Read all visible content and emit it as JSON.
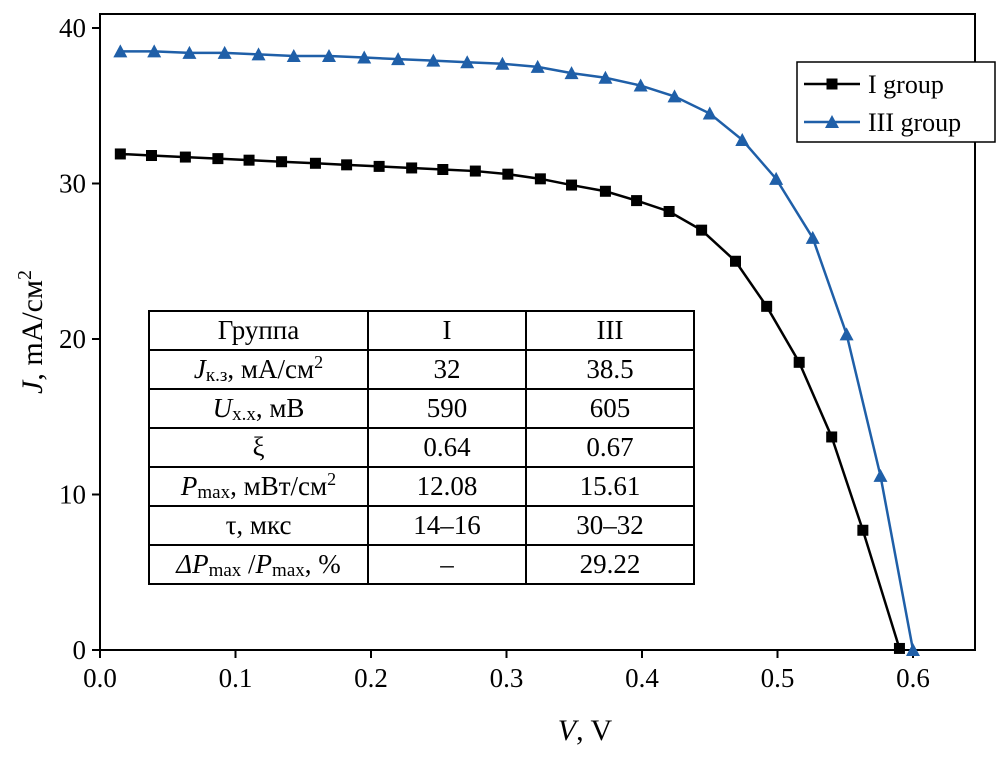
{
  "chart_data": {
    "type": "line",
    "xlabel": {
      "sym": "V",
      "rest": ", V"
    },
    "ylabel": {
      "sym": "J",
      "rest": ", mA/см",
      "sup": "2"
    },
    "xlim": [
      0,
      0.65
    ],
    "ylim": [
      0,
      40
    ],
    "xticks": [
      "0.0",
      "0.1",
      "0.2",
      "0.3",
      "0.4",
      "0.5",
      "0.6"
    ],
    "yticks": [
      "0",
      "10",
      "20",
      "30",
      "40"
    ],
    "legend_position": "top-right",
    "series": [
      {
        "name": "I group",
        "color": "#000000",
        "marker": "square",
        "x": [
          0.015,
          0.038,
          0.063,
          0.087,
          0.11,
          0.134,
          0.159,
          0.182,
          0.206,
          0.23,
          0.253,
          0.277,
          0.301,
          0.325,
          0.348,
          0.373,
          0.396,
          0.42,
          0.444,
          0.469,
          0.492,
          0.516,
          0.54,
          0.563,
          0.59
        ],
        "y": [
          31.9,
          31.8,
          31.7,
          31.6,
          31.5,
          31.4,
          31.3,
          31.2,
          31.1,
          31.0,
          30.9,
          30.8,
          30.6,
          30.3,
          29.9,
          29.5,
          28.9,
          28.2,
          27.0,
          25.0,
          22.1,
          18.5,
          13.7,
          7.7,
          0.1
        ]
      },
      {
        "name": "III group",
        "color": "#1f5fa8",
        "marker": "triangle",
        "x": [
          0.015,
          0.04,
          0.066,
          0.092,
          0.117,
          0.143,
          0.169,
          0.195,
          0.22,
          0.246,
          0.271,
          0.297,
          0.323,
          0.348,
          0.373,
          0.399,
          0.424,
          0.45,
          0.474,
          0.499,
          0.526,
          0.551,
          0.576,
          0.6
        ],
        "y": [
          38.5,
          38.5,
          38.4,
          38.4,
          38.3,
          38.2,
          38.2,
          38.1,
          38.0,
          37.9,
          37.8,
          37.7,
          37.5,
          37.1,
          36.8,
          36.3,
          35.6,
          34.5,
          32.8,
          30.3,
          26.5,
          20.3,
          11.2,
          0
        ]
      }
    ],
    "table": {
      "header": [
        "Группа",
        "I",
        "III"
      ],
      "rows": [
        {
          "sym": "J",
          "sub": "к.з",
          "rest": ", мА/см",
          "sup": "2",
          "I": "32",
          "III": "38.5"
        },
        {
          "sym": "U",
          "sub": "х.х",
          "rest": ", мВ",
          "sup": "",
          "I": "590",
          "III": "605"
        },
        {
          "sym": "",
          "sub": "",
          "rest": "ξ",
          "sup": "",
          "I": "0.64",
          "III": "0.67"
        },
        {
          "sym": "P",
          "sub": "max",
          "rest": ", мВт/см",
          "sup": "2",
          "I": "12.08",
          "III": "15.61"
        },
        {
          "sym": "",
          "sub": "",
          "rest": "τ, мкс",
          "sup": "",
          "I": "14–16",
          "III": "30–32"
        },
        {
          "sym": "ΔP",
          "sub": "max",
          "rest": " /",
          "sym2": "P",
          "sub2": "max",
          "rest2": ", %",
          "sup": "",
          "I": "–",
          "III": "29.22"
        }
      ]
    }
  }
}
